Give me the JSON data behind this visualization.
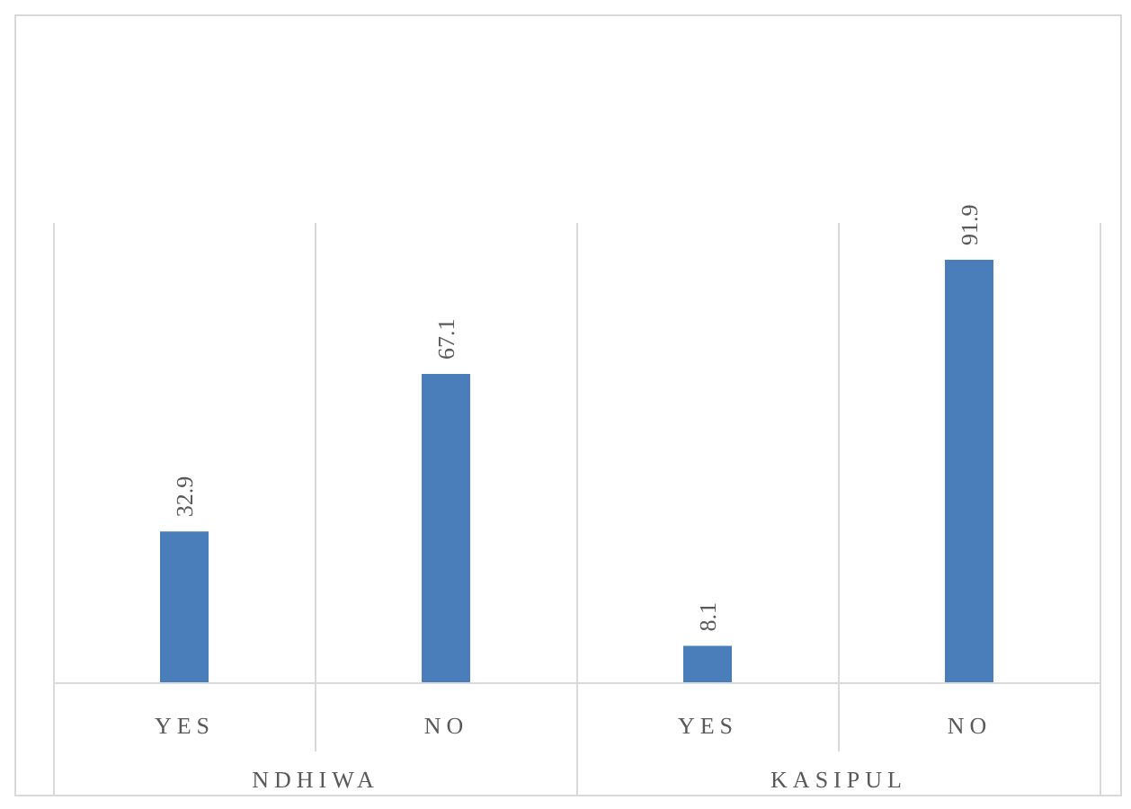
{
  "chart_data": {
    "type": "bar",
    "categories": [
      "YES",
      "NO",
      "YES",
      "NO"
    ],
    "values": [
      32.9,
      67.1,
      8.1,
      91.9
    ],
    "color": "#4a7ebb",
    "data_labels": true,
    "grid": "x",
    "annotations": [
      "NDHIWA",
      "KASIPUL"
    ]
  }
}
